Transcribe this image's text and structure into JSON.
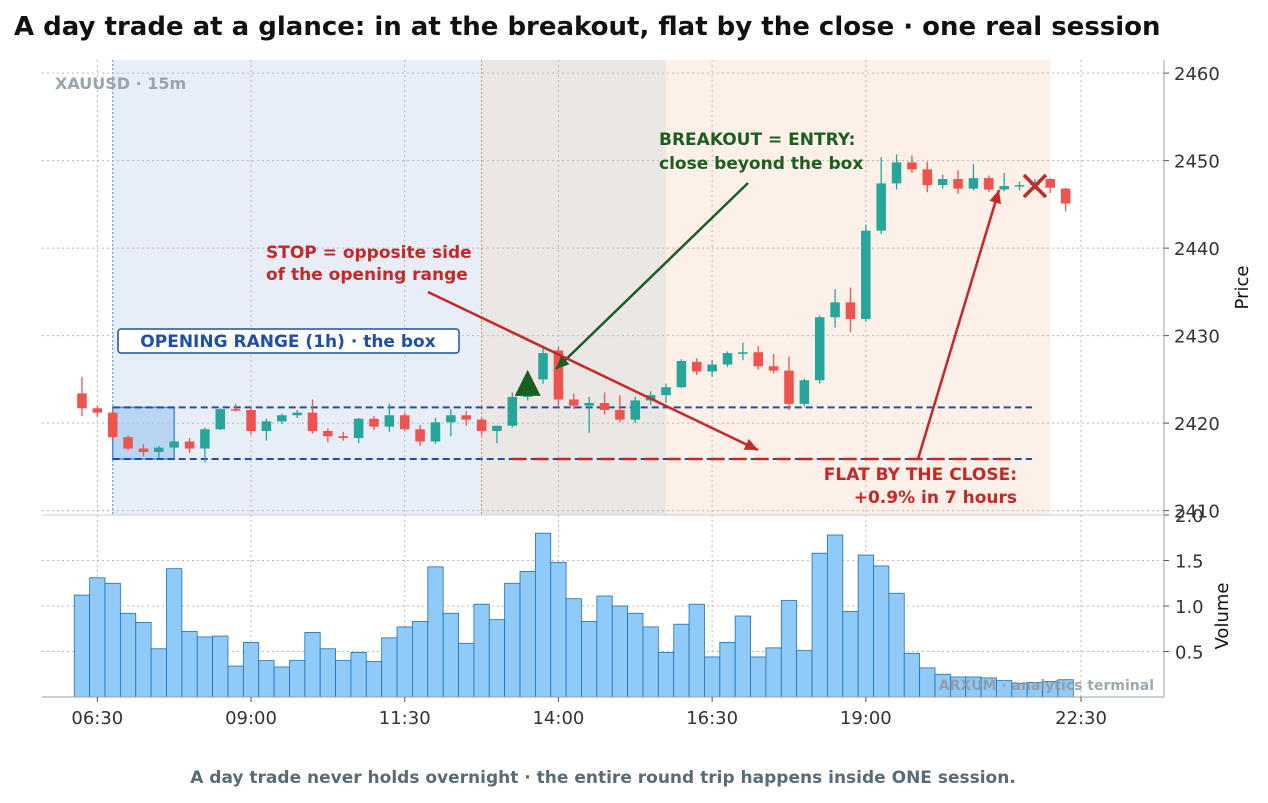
{
  "header": {
    "title": "A day trade at a glance: in at the breakout, flat by the close · one real session"
  },
  "footer": {
    "caption": "A day trade never holds overnight · the entire round trip happens inside ONE session."
  },
  "panel": {
    "symbol_label": "XAUUSD · 15m",
    "watermark": "ARXUM · analytics terminal"
  },
  "annotations": {
    "box_label": "OPENING RANGE (1h) · the box",
    "stop_line1": "STOP = opposite side",
    "stop_line2": "of the opening range",
    "entry_line1": "BREAKOUT = ENTRY:",
    "entry_line2": "close beyond the box",
    "flat_line1": "FLAT BY THE CLOSE:",
    "flat_line2": "+0.9% in 7 hours"
  },
  "colors": {
    "up": "#26a69a",
    "down": "#ef5350",
    "volume": "#90caf9",
    "volume_edge": "#1e6fb0",
    "box_line": "#1f4fa8",
    "entry": "#1b5e20",
    "stop": "#c62828",
    "zone_range": "#e8eef8",
    "zone_mid": "#ebe7e5",
    "zone_late": "#fdf0e8"
  },
  "chart_data": {
    "type": "candlestick",
    "x_ticks": [
      "06:30",
      "09:00",
      "11:30",
      "14:00",
      "16:30",
      "19:00",
      "22:30"
    ],
    "x_tick_times": [
      "06:30",
      "09:00",
      "11:30",
      "14:00",
      "16:30",
      "19:00",
      "22:30"
    ],
    "price_axis": {
      "label": "Price",
      "ticks": [
        2410,
        2420,
        2430,
        2440,
        2450,
        2460
      ],
      "range": [
        2409.5,
        2461.5
      ]
    },
    "volume_axis": {
      "label": "Volume",
      "ticks": [
        "0.5",
        "1.0",
        "1.5",
        "2.0"
      ],
      "tick_values": [
        0.5,
        1.0,
        1.5,
        2.0
      ],
      "range": [
        0,
        2.0
      ]
    },
    "opening_range": {
      "high": 2421.8,
      "low": 2415.9,
      "start": "06:45",
      "end": "07:45"
    },
    "entry": {
      "time": "13:30",
      "price": 2424.6
    },
    "exit": {
      "time": "21:45",
      "price": 2447.1
    },
    "return_pct": 0.9,
    "zones": [
      {
        "name": "range",
        "start": "06:45",
        "end": "12:45"
      },
      {
        "name": "mid",
        "start": "12:45",
        "end": "15:45"
      },
      {
        "name": "late",
        "start": "15:45",
        "end": "22:00"
      }
    ],
    "candles": [
      {
        "t": "06:15",
        "o": 2423.4,
        "h": 2425.3,
        "l": 2420.8,
        "c": 2421.7,
        "v": 1.12
      },
      {
        "t": "06:30",
        "o": 2421.7,
        "h": 2422.0,
        "l": 2420.7,
        "c": 2421.2,
        "v": 1.31
      },
      {
        "t": "06:45",
        "o": 2421.2,
        "h": 2421.5,
        "l": 2418.0,
        "c": 2418.4,
        "v": 1.25
      },
      {
        "t": "07:00",
        "o": 2418.4,
        "h": 2418.6,
        "l": 2416.9,
        "c": 2417.1,
        "v": 0.92
      },
      {
        "t": "07:15",
        "o": 2417.1,
        "h": 2417.6,
        "l": 2416.2,
        "c": 2416.7,
        "v": 0.82
      },
      {
        "t": "07:30",
        "o": 2416.7,
        "h": 2417.4,
        "l": 2416.0,
        "c": 2417.2,
        "v": 0.53
      },
      {
        "t": "07:45",
        "o": 2417.2,
        "h": 2418.1,
        "l": 2416.4,
        "c": 2417.9,
        "v": 1.41
      },
      {
        "t": "08:00",
        "o": 2417.9,
        "h": 2418.3,
        "l": 2416.6,
        "c": 2417.1,
        "v": 0.72
      },
      {
        "t": "08:15",
        "o": 2417.1,
        "h": 2419.5,
        "l": 2415.5,
        "c": 2419.3,
        "v": 0.66
      },
      {
        "t": "08:30",
        "o": 2419.3,
        "h": 2421.7,
        "l": 2419.2,
        "c": 2421.6,
        "v": 0.67
      },
      {
        "t": "08:45",
        "o": 2421.6,
        "h": 2422.2,
        "l": 2421.3,
        "c": 2421.5,
        "v": 0.34
      },
      {
        "t": "09:00",
        "o": 2421.5,
        "h": 2421.9,
        "l": 2418.7,
        "c": 2419.1,
        "v": 0.6
      },
      {
        "t": "09:15",
        "o": 2419.1,
        "h": 2420.5,
        "l": 2418.0,
        "c": 2420.2,
        "v": 0.4
      },
      {
        "t": "09:30",
        "o": 2420.2,
        "h": 2421.1,
        "l": 2419.9,
        "c": 2420.9,
        "v": 0.33
      },
      {
        "t": "09:45",
        "o": 2420.9,
        "h": 2421.5,
        "l": 2420.6,
        "c": 2421.2,
        "v": 0.4
      },
      {
        "t": "10:00",
        "o": 2421.2,
        "h": 2422.7,
        "l": 2418.8,
        "c": 2419.1,
        "v": 0.71
      },
      {
        "t": "10:15",
        "o": 2419.1,
        "h": 2419.4,
        "l": 2417.8,
        "c": 2418.5,
        "v": 0.53
      },
      {
        "t": "10:30",
        "o": 2418.5,
        "h": 2419.0,
        "l": 2418.0,
        "c": 2418.3,
        "v": 0.4
      },
      {
        "t": "10:45",
        "o": 2418.3,
        "h": 2420.6,
        "l": 2417.7,
        "c": 2420.5,
        "v": 0.49
      },
      {
        "t": "11:00",
        "o": 2420.5,
        "h": 2420.8,
        "l": 2419.2,
        "c": 2419.6,
        "v": 0.39
      },
      {
        "t": "11:15",
        "o": 2419.6,
        "h": 2422.2,
        "l": 2419.0,
        "c": 2420.9,
        "v": 0.65
      },
      {
        "t": "11:30",
        "o": 2420.9,
        "h": 2421.2,
        "l": 2419.1,
        "c": 2419.3,
        "v": 0.77
      },
      {
        "t": "11:45",
        "o": 2419.3,
        "h": 2419.8,
        "l": 2417.4,
        "c": 2417.9,
        "v": 0.83
      },
      {
        "t": "12:00",
        "o": 2417.9,
        "h": 2420.6,
        "l": 2417.6,
        "c": 2420.1,
        "v": 1.43
      },
      {
        "t": "12:15",
        "o": 2420.1,
        "h": 2421.6,
        "l": 2418.5,
        "c": 2420.9,
        "v": 0.92
      },
      {
        "t": "12:30",
        "o": 2420.9,
        "h": 2421.4,
        "l": 2419.7,
        "c": 2420.4,
        "v": 0.59
      },
      {
        "t": "12:45",
        "o": 2420.4,
        "h": 2420.6,
        "l": 2418.6,
        "c": 2419.1,
        "v": 1.02
      },
      {
        "t": "13:00",
        "o": 2419.1,
        "h": 2419.4,
        "l": 2417.7,
        "c": 2419.7,
        "v": 0.85
      },
      {
        "t": "13:15",
        "o": 2419.7,
        "h": 2423.5,
        "l": 2419.5,
        "c": 2423.0,
        "v": 1.25
      },
      {
        "t": "13:30",
        "o": 2423.0,
        "h": 2425.3,
        "l": 2422.6,
        "c": 2425.0,
        "v": 1.38
      },
      {
        "t": "13:45",
        "o": 2425.0,
        "h": 2428.6,
        "l": 2424.5,
        "c": 2428.0,
        "v": 1.8
      },
      {
        "t": "14:00",
        "o": 2428.3,
        "h": 2428.7,
        "l": 2422.0,
        "c": 2422.7,
        "v": 1.48
      },
      {
        "t": "14:15",
        "o": 2422.7,
        "h": 2423.4,
        "l": 2421.6,
        "c": 2422.0,
        "v": 1.08
      },
      {
        "t": "14:30",
        "o": 2422.0,
        "h": 2423.0,
        "l": 2418.9,
        "c": 2422.3,
        "v": 0.83
      },
      {
        "t": "14:45",
        "o": 2422.3,
        "h": 2423.5,
        "l": 2421.0,
        "c": 2421.5,
        "v": 1.11
      },
      {
        "t": "15:00",
        "o": 2421.5,
        "h": 2423.2,
        "l": 2420.1,
        "c": 2420.4,
        "v": 1.0
      },
      {
        "t": "15:15",
        "o": 2420.4,
        "h": 2423.0,
        "l": 2420.0,
        "c": 2422.6,
        "v": 0.92
      },
      {
        "t": "15:30",
        "o": 2422.6,
        "h": 2423.6,
        "l": 2422.1,
        "c": 2423.2,
        "v": 0.77
      },
      {
        "t": "15:45",
        "o": 2423.2,
        "h": 2424.5,
        "l": 2422.3,
        "c": 2424.1,
        "v": 0.49
      },
      {
        "t": "16:00",
        "o": 2424.1,
        "h": 2427.3,
        "l": 2424.0,
        "c": 2427.1,
        "v": 0.8
      },
      {
        "t": "16:15",
        "o": 2427.0,
        "h": 2427.4,
        "l": 2425.5,
        "c": 2425.9,
        "v": 1.02
      },
      {
        "t": "16:30",
        "o": 2425.9,
        "h": 2427.2,
        "l": 2425.3,
        "c": 2426.7,
        "v": 0.44
      },
      {
        "t": "16:45",
        "o": 2426.7,
        "h": 2428.2,
        "l": 2426.4,
        "c": 2428.0,
        "v": 0.6
      },
      {
        "t": "17:00",
        "o": 2428.0,
        "h": 2429.2,
        "l": 2427.2,
        "c": 2428.1,
        "v": 0.89
      },
      {
        "t": "17:15",
        "o": 2428.1,
        "h": 2428.8,
        "l": 2426.1,
        "c": 2426.5,
        "v": 0.44
      },
      {
        "t": "17:30",
        "o": 2426.5,
        "h": 2427.9,
        "l": 2425.7,
        "c": 2426.0,
        "v": 0.54
      },
      {
        "t": "17:45",
        "o": 2426.0,
        "h": 2427.6,
        "l": 2421.5,
        "c": 2422.2,
        "v": 1.06
      },
      {
        "t": "18:00",
        "o": 2422.2,
        "h": 2425.1,
        "l": 2421.9,
        "c": 2424.9,
        "v": 0.51
      },
      {
        "t": "18:15",
        "o": 2424.9,
        "h": 2432.3,
        "l": 2424.5,
        "c": 2432.1,
        "v": 1.58
      },
      {
        "t": "18:30",
        "o": 2432.1,
        "h": 2435.3,
        "l": 2430.9,
        "c": 2433.8,
        "v": 1.78
      },
      {
        "t": "18:45",
        "o": 2433.8,
        "h": 2435.5,
        "l": 2430.4,
        "c": 2431.9,
        "v": 0.94
      },
      {
        "t": "19:00",
        "o": 2431.9,
        "h": 2442.7,
        "l": 2431.6,
        "c": 2442.0,
        "v": 1.56
      },
      {
        "t": "19:15",
        "o": 2442.0,
        "h": 2450.4,
        "l": 2441.6,
        "c": 2447.4,
        "v": 1.44
      },
      {
        "t": "19:30",
        "o": 2447.4,
        "h": 2450.7,
        "l": 2446.7,
        "c": 2449.8,
        "v": 1.14
      },
      {
        "t": "19:45",
        "o": 2449.8,
        "h": 2450.6,
        "l": 2448.6,
        "c": 2449.0,
        "v": 0.48
      },
      {
        "t": "20:00",
        "o": 2449.0,
        "h": 2449.9,
        "l": 2446.4,
        "c": 2447.2,
        "v": 0.32
      },
      {
        "t": "20:15",
        "o": 2447.2,
        "h": 2448.4,
        "l": 2446.8,
        "c": 2447.9,
        "v": 0.25
      },
      {
        "t": "20:30",
        "o": 2447.9,
        "h": 2448.9,
        "l": 2446.2,
        "c": 2446.8,
        "v": 0.22
      },
      {
        "t": "20:45",
        "o": 2446.8,
        "h": 2449.6,
        "l": 2446.6,
        "c": 2448.0,
        "v": 0.22
      },
      {
        "t": "21:00",
        "o": 2448.0,
        "h": 2448.3,
        "l": 2446.4,
        "c": 2446.7,
        "v": 0.21
      },
      {
        "t": "21:15",
        "o": 2446.7,
        "h": 2448.6,
        "l": 2446.5,
        "c": 2447.1,
        "v": 0.18
      },
      {
        "t": "21:30",
        "o": 2447.1,
        "h": 2447.6,
        "l": 2446.6,
        "c": 2447.2,
        "v": 0.15
      },
      {
        "t": "21:45",
        "o": 2447.2,
        "h": 2447.9,
        "l": 2446.7,
        "c": 2447.5,
        "v": 0.16
      },
      {
        "t": "22:00",
        "o": 2447.9,
        "h": 2448.0,
        "l": 2446.3,
        "c": 2446.9,
        "v": 0.17
      },
      {
        "t": "22:15",
        "o": 2446.8,
        "h": 2446.9,
        "l": 2444.2,
        "c": 2445.1,
        "v": 0.19
      }
    ]
  }
}
